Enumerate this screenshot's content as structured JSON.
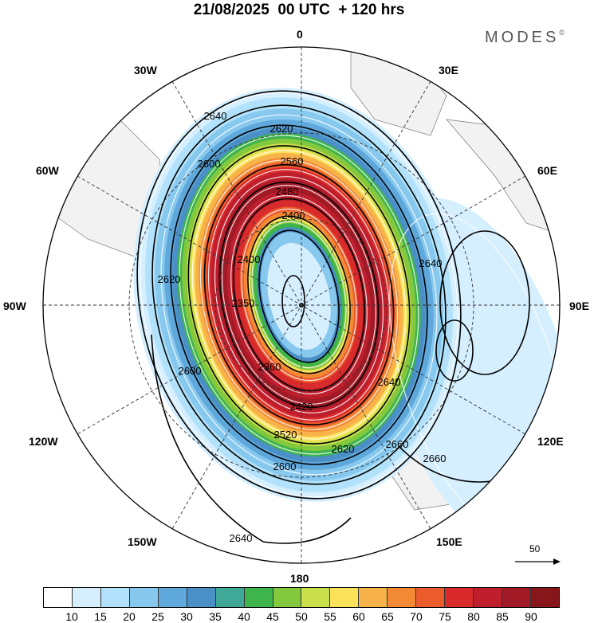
{
  "title": "21/08/2025  00 UTC  + 120 hrs",
  "brand": "MODES",
  "brand_mark": "©",
  "lon_labels": {
    "top": "0",
    "top_left": "30W",
    "top_right": "30E",
    "upper_left": "60W",
    "upper_right": "60E",
    "left": "90W",
    "right": "90E",
    "lower_left": "120W",
    "lower_right": "120E",
    "bottom_left": "150W",
    "bottom_right": "150E",
    "bottom": "180"
  },
  "contours": [
    "2640",
    "2620",
    "2600",
    "2560",
    "2480",
    "2400",
    "2400",
    "2350",
    "2360",
    "2420",
    "2520",
    "2600",
    "2620",
    "2640",
    "2660",
    "2660",
    "2640",
    "2620",
    "2600",
    "2640"
  ],
  "vector_scale": "50",
  "legend": {
    "ticks": [
      "10",
      "15",
      "20",
      "25",
      "30",
      "35",
      "40",
      "45",
      "50",
      "55",
      "60",
      "65",
      "70",
      "75",
      "80",
      "85",
      "90"
    ],
    "colors": [
      "#ffffff",
      "#d6efff",
      "#b2e2fb",
      "#87c8ee",
      "#5fa8dc",
      "#4a8fc6",
      "#40a897",
      "#3eb44d",
      "#84c83e",
      "#c9e04c",
      "#fbe25a",
      "#f7b24a",
      "#f28a35",
      "#ec5b2c",
      "#d92b2b",
      "#bf1e2d",
      "#a31a27",
      "#861619"
    ]
  }
}
